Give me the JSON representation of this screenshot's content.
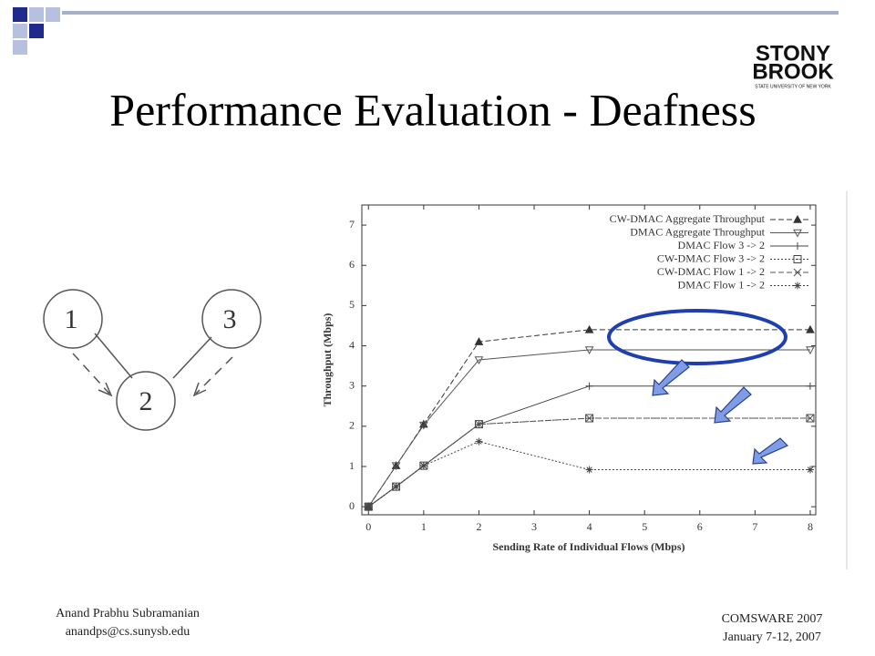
{
  "header": {
    "title": "Performance Evaluation - Deafness",
    "logo_top": "STONY",
    "logo_bottom": "BROOK",
    "logo_sub": "STATE UNIVERSITY OF NEW YORK"
  },
  "diagram": {
    "nodes": [
      {
        "label": "1"
      },
      {
        "label": "2"
      },
      {
        "label": "3"
      }
    ]
  },
  "footer": {
    "author": "Anand Prabhu Subramanian",
    "email": "anandps@cs.sunysb.edu",
    "event": "COMSWARE 2007",
    "date": "January 7-12, 2007"
  },
  "chart_data": {
    "type": "line",
    "xlabel": "Sending Rate of Individual Flows (Mbps)",
    "ylabel": "Throughput (Mbps)",
    "x": [
      0,
      0.5,
      1,
      2,
      4,
      8
    ],
    "xlim": [
      -0.12,
      8.1
    ],
    "ylim": [
      -0.2,
      7.5
    ],
    "xticks": [
      0,
      1,
      2,
      3,
      4,
      5,
      6,
      7,
      8
    ],
    "yticks": [
      0,
      1,
      2,
      3,
      4,
      5,
      6,
      7
    ],
    "grid": false,
    "legend": "top-right",
    "series": [
      {
        "name": "CW-DMAC Aggregate Throughput",
        "color": "#333333",
        "marker": "triangle",
        "dash": "dashed",
        "values": [
          0,
          1.02,
          2.05,
          4.1,
          4.4,
          4.4
        ]
      },
      {
        "name": "DMAC Aggregate Throughput",
        "color": "#555555",
        "marker": "triangle-down",
        "dash": "solid",
        "values": [
          0,
          1.02,
          2.03,
          3.65,
          3.9,
          3.9
        ]
      },
      {
        "name": "DMAC Flow 3 -> 2",
        "color": "#444444",
        "marker": "plus",
        "dash": "solid",
        "values": [
          0,
          0.5,
          1.02,
          2.05,
          3.0,
          3.0
        ]
      },
      {
        "name": "CW-DMAC Flow 3 -> 2",
        "color": "#444444",
        "marker": "square",
        "dash": "dotted",
        "values": [
          0,
          0.5,
          1.02,
          2.05,
          2.2,
          2.2
        ]
      },
      {
        "name": "CW-DMAC Flow 1 -> 2",
        "color": "#555555",
        "marker": "x",
        "dash": "dashed",
        "values": [
          0,
          0.5,
          1.02,
          2.05,
          2.2,
          2.2
        ]
      },
      {
        "name": "DMAC Flow 1 -> 2",
        "color": "#444444",
        "marker": "asterisk",
        "dash": "dotted",
        "values": [
          0,
          0.5,
          1.02,
          1.62,
          0.92,
          0.92
        ]
      }
    ]
  }
}
